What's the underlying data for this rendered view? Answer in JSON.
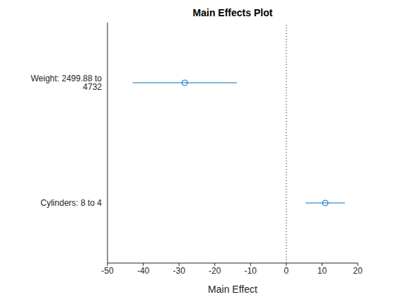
{
  "chart_data": {
    "type": "scatter",
    "title": "Main Effects Plot",
    "x_label": "Main Effect",
    "orientation": "horizontal",
    "categories": [
      "Weight: 2499.88 to 4732",
      "Cylinders: 8 to 4"
    ],
    "values": [
      -28.4,
      10.9
    ],
    "lower": [
      -43.0,
      5.4
    ],
    "upper": [
      -13.8,
      16.4
    ],
    "reference_x": 0,
    "xlim": [
      -50,
      20
    ],
    "xticks": [
      -50,
      -40,
      -30,
      -20,
      -10,
      0,
      10,
      20
    ],
    "color": "#0072bd",
    "marker": "circle",
    "grid": false
  }
}
